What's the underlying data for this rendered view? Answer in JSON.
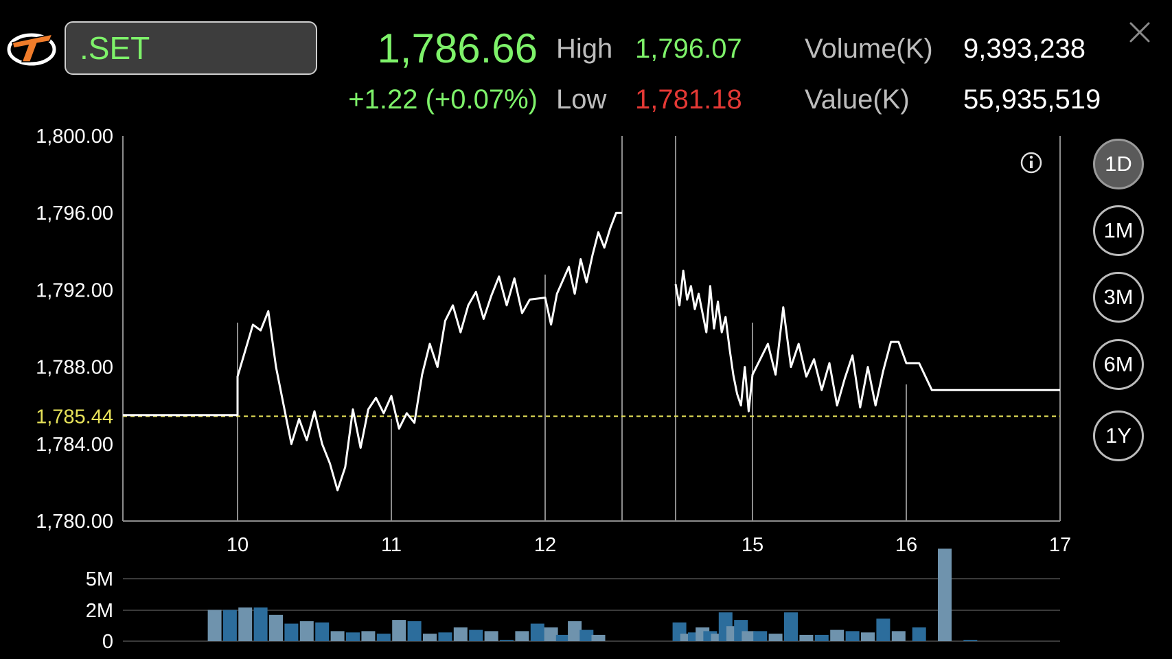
{
  "header": {
    "symbol": ".SET",
    "price": "1,786.66",
    "change": "+1.22 (+0.07%)",
    "high_label": "High",
    "high_value": "1,796.07",
    "low_label": "Low",
    "low_value": "1,781.18",
    "volume_label": "Volume(K)",
    "volume_value": "9,393,238",
    "value_label": "Value(K)",
    "value_value": "55,935,519"
  },
  "colors": {
    "up": "#7ef26a",
    "down": "#e53935",
    "reference": "#e8e35a",
    "line": "#ffffff",
    "volume_bar_light": "#6f93ad",
    "volume_bar_dark": "#2c6d9c"
  },
  "icons": [
    "logo-icon",
    "close-icon",
    "info-icon"
  ],
  "periods": [
    {
      "label": "1D",
      "active": true
    },
    {
      "label": "1M",
      "active": false
    },
    {
      "label": "3M",
      "active": false
    },
    {
      "label": "6M",
      "active": false
    },
    {
      "label": "1Y",
      "active": false
    }
  ],
  "chart_data": {
    "type": "line",
    "title": "",
    "x_ticks": [
      "10",
      "11",
      "12",
      "15",
      "16",
      "17"
    ],
    "x_domain": [
      9.25,
      17
    ],
    "y_ticks": [
      "1,800.00",
      "1,796.00",
      "1,792.00",
      "1,788.00",
      "1,784.00",
      "1,780.00"
    ],
    "ylim": [
      1780,
      1800
    ],
    "reference_line": {
      "value": 1785.44,
      "label": "1,785.44"
    },
    "grid": "vertical lines at day boundaries",
    "series": [
      {
        "points": [
          [
            9.25,
            1785.5
          ],
          [
            9.5,
            1785.5
          ],
          [
            10.0,
            1785.5
          ],
          [
            10.0,
            1787.5
          ],
          [
            10.1,
            1790.2
          ],
          [
            10.15,
            1789.9
          ],
          [
            10.2,
            1790.9
          ],
          [
            10.25,
            1788.0
          ],
          [
            10.3,
            1786.0
          ],
          [
            10.35,
            1784.0
          ],
          [
            10.4,
            1785.3
          ],
          [
            10.45,
            1784.2
          ],
          [
            10.5,
            1785.7
          ],
          [
            10.55,
            1784.0
          ],
          [
            10.6,
            1783.0
          ],
          [
            10.65,
            1781.6
          ],
          [
            10.7,
            1782.8
          ],
          [
            10.75,
            1785.8
          ],
          [
            10.8,
            1783.8
          ],
          [
            10.85,
            1785.8
          ],
          [
            10.9,
            1786.4
          ],
          [
            10.95,
            1785.6
          ],
          [
            11.0,
            1786.5
          ],
          [
            11.05,
            1784.8
          ],
          [
            11.1,
            1785.6
          ],
          [
            11.15,
            1785.1
          ],
          [
            11.2,
            1787.6
          ],
          [
            11.25,
            1789.2
          ],
          [
            11.3,
            1788.0
          ],
          [
            11.35,
            1790.4
          ],
          [
            11.4,
            1791.2
          ],
          [
            11.45,
            1789.8
          ],
          [
            11.5,
            1791.2
          ],
          [
            11.55,
            1791.9
          ],
          [
            11.6,
            1790.5
          ],
          [
            11.65,
            1791.7
          ],
          [
            11.7,
            1792.7
          ],
          [
            11.75,
            1791.2
          ],
          [
            11.8,
            1792.6
          ],
          [
            11.85,
            1790.8
          ],
          [
            11.9,
            1791.5
          ],
          [
            12.0,
            1791.6
          ],
          [
            12.05,
            1790.2
          ],
          [
            12.1,
            1791.8
          ],
          [
            12.2,
            1793.2
          ],
          [
            12.25,
            1791.8
          ],
          [
            12.3,
            1793.6
          ],
          [
            12.35,
            1792.4
          ],
          [
            12.4,
            1793.8
          ],
          [
            12.45,
            1795.0
          ],
          [
            12.5,
            1794.2
          ],
          [
            12.55,
            1795.2
          ],
          [
            12.6,
            1796.0
          ],
          [
            12.65,
            1796.0
          ]
        ]
      },
      {
        "points": [
          [
            14.0,
            1792.3
          ],
          [
            14.05,
            1791.2
          ],
          [
            14.1,
            1793.0
          ],
          [
            14.15,
            1791.5
          ],
          [
            14.2,
            1792.2
          ],
          [
            14.25,
            1791.0
          ],
          [
            14.3,
            1791.8
          ],
          [
            14.35,
            1790.8
          ],
          [
            14.4,
            1789.8
          ],
          [
            14.45,
            1792.2
          ],
          [
            14.5,
            1790.0
          ],
          [
            14.55,
            1791.4
          ],
          [
            14.6,
            1789.8
          ],
          [
            14.65,
            1790.6
          ],
          [
            14.7,
            1789.0
          ],
          [
            14.75,
            1787.6
          ],
          [
            14.8,
            1786.6
          ],
          [
            14.85,
            1786.0
          ],
          [
            14.9,
            1788.0
          ],
          [
            14.95,
            1785.7
          ],
          [
            15.0,
            1787.6
          ],
          [
            15.05,
            1788.4
          ],
          [
            15.1,
            1789.2
          ],
          [
            15.15,
            1787.6
          ],
          [
            15.2,
            1791.1
          ],
          [
            15.25,
            1788.0
          ],
          [
            15.3,
            1789.2
          ],
          [
            15.35,
            1787.5
          ],
          [
            15.4,
            1788.4
          ],
          [
            15.45,
            1786.8
          ],
          [
            15.5,
            1788.2
          ],
          [
            15.55,
            1786.0
          ],
          [
            15.6,
            1787.4
          ],
          [
            15.65,
            1788.6
          ],
          [
            15.7,
            1785.9
          ],
          [
            15.75,
            1788.0
          ],
          [
            15.8,
            1786.0
          ],
          [
            15.85,
            1787.8
          ],
          [
            15.9,
            1789.3
          ],
          [
            15.95,
            1789.3
          ],
          [
            16.0,
            1788.2
          ],
          [
            16.05,
            1788.2
          ],
          [
            16.1,
            1786.8
          ],
          [
            16.2,
            1786.8
          ],
          [
            16.6,
            1786.8
          ]
        ]
      }
    ],
    "volume": {
      "y_ticks": [
        "5M",
        "2M",
        "0"
      ],
      "ylim": [
        0,
        8
      ],
      "bars": [
        {
          "x": 9.85,
          "v": 2.5,
          "tone": "light"
        },
        {
          "x": 9.95,
          "v": 2.5,
          "tone": "dark"
        },
        {
          "x": 10.05,
          "v": 2.7,
          "tone": "light"
        },
        {
          "x": 10.15,
          "v": 2.7,
          "tone": "dark"
        },
        {
          "x": 10.25,
          "v": 2.1,
          "tone": "light"
        },
        {
          "x": 10.35,
          "v": 1.4,
          "tone": "dark"
        },
        {
          "x": 10.45,
          "v": 1.6,
          "tone": "light"
        },
        {
          "x": 10.55,
          "v": 1.5,
          "tone": "dark"
        },
        {
          "x": 10.65,
          "v": 0.8,
          "tone": "light"
        },
        {
          "x": 10.75,
          "v": 0.7,
          "tone": "dark"
        },
        {
          "x": 10.85,
          "v": 0.8,
          "tone": "light"
        },
        {
          "x": 10.95,
          "v": 0.6,
          "tone": "dark"
        },
        {
          "x": 11.05,
          "v": 1.7,
          "tone": "light"
        },
        {
          "x": 11.15,
          "v": 1.6,
          "tone": "dark"
        },
        {
          "x": 11.25,
          "v": 0.6,
          "tone": "light"
        },
        {
          "x": 11.35,
          "v": 0.7,
          "tone": "dark"
        },
        {
          "x": 11.45,
          "v": 1.1,
          "tone": "light"
        },
        {
          "x": 11.55,
          "v": 0.9,
          "tone": "dark"
        },
        {
          "x": 11.65,
          "v": 0.8,
          "tone": "light"
        },
        {
          "x": 11.75,
          "v": 0.1,
          "tone": "dark"
        },
        {
          "x": 11.85,
          "v": 0.8,
          "tone": "light"
        },
        {
          "x": 11.95,
          "v": 1.4,
          "tone": "dark"
        },
        {
          "x": 12.05,
          "v": 1.1,
          "tone": "light"
        },
        {
          "x": 12.15,
          "v": 0.5,
          "tone": "dark"
        },
        {
          "x": 12.25,
          "v": 1.6,
          "tone": "light"
        },
        {
          "x": 12.35,
          "v": 0.9,
          "tone": "dark"
        },
        {
          "x": 12.45,
          "v": 0.5,
          "tone": "light"
        },
        {
          "x": 14.05,
          "v": 1.5,
          "tone": "dark"
        },
        {
          "x": 14.15,
          "v": 0.6,
          "tone": "light"
        },
        {
          "x": 14.25,
          "v": 0.7,
          "tone": "dark"
        },
        {
          "x": 14.35,
          "v": 1.1,
          "tone": "light"
        },
        {
          "x": 14.45,
          "v": 0.8,
          "tone": "dark"
        },
        {
          "x": 14.55,
          "v": 0.6,
          "tone": "light"
        },
        {
          "x": 14.65,
          "v": 2.3,
          "tone": "dark"
        },
        {
          "x": 14.75,
          "v": 1.2,
          "tone": "light"
        },
        {
          "x": 14.85,
          "v": 1.7,
          "tone": "dark"
        },
        {
          "x": 14.95,
          "v": 0.8,
          "tone": "light"
        },
        {
          "x": 15.05,
          "v": 0.8,
          "tone": "dark"
        },
        {
          "x": 15.15,
          "v": 0.6,
          "tone": "light"
        },
        {
          "x": 15.25,
          "v": 2.3,
          "tone": "dark"
        },
        {
          "x": 15.35,
          "v": 0.5,
          "tone": "light"
        },
        {
          "x": 15.45,
          "v": 0.5,
          "tone": "dark"
        },
        {
          "x": 15.55,
          "v": 0.9,
          "tone": "light"
        },
        {
          "x": 15.65,
          "v": 0.8,
          "tone": "dark"
        },
        {
          "x": 15.75,
          "v": 0.7,
          "tone": "light"
        },
        {
          "x": 15.85,
          "v": 1.8,
          "tone": "dark"
        },
        {
          "x": 15.95,
          "v": 0.8,
          "tone": "light"
        },
        {
          "x": 16.05,
          "v": 1.1,
          "tone": "dark"
        },
        {
          "x": 16.15,
          "v": 7.4,
          "tone": "light"
        },
        {
          "x": 16.25,
          "v": 0.1,
          "tone": "dark"
        }
      ]
    }
  }
}
